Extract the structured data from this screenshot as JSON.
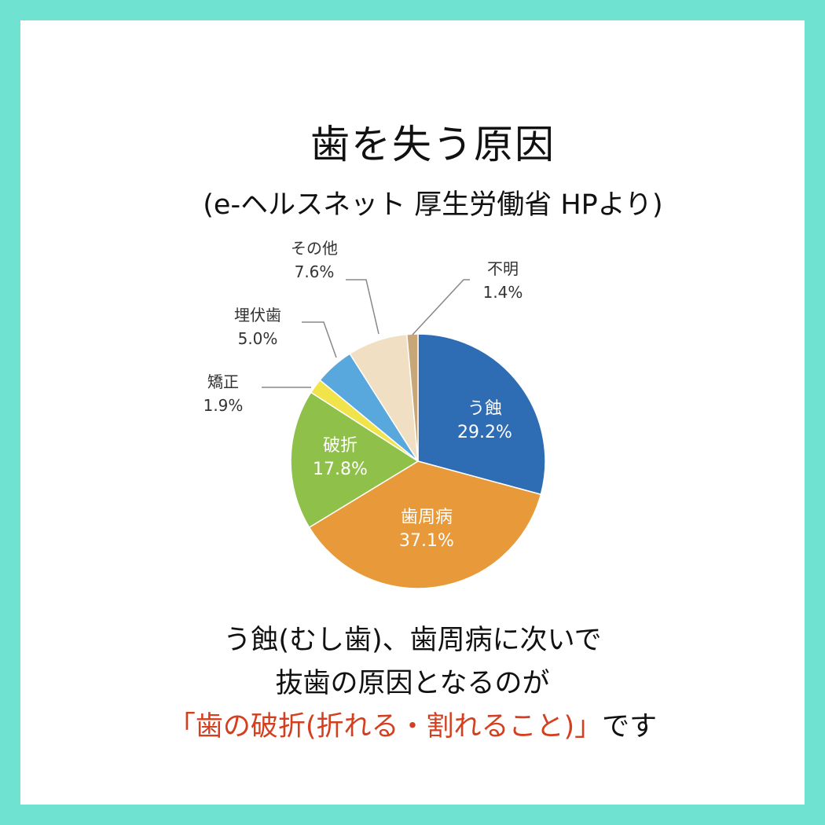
{
  "header": {
    "title": "歯を失う原因",
    "subtitle": "(e-ヘルスネット 厚生労働省 HPより)"
  },
  "chart_data": {
    "type": "pie",
    "start_angle_deg": 0,
    "direction": "clockwise",
    "slices": [
      {
        "label": "う蝕",
        "value": 29.2,
        "value_label": "29.2%",
        "color": "#2e6db4",
        "label_placement": "inside"
      },
      {
        "label": "歯周病",
        "value": 37.1,
        "value_label": "37.1%",
        "color": "#e89a3a",
        "label_placement": "inside"
      },
      {
        "label": "破折",
        "value": 17.8,
        "value_label": "17.8%",
        "color": "#8fc14a",
        "label_placement": "inside"
      },
      {
        "label": "矯正",
        "value": 1.9,
        "value_label": "1.9%",
        "color": "#f1e34a",
        "label_placement": "outside"
      },
      {
        "label": "埋伏歯",
        "value": 5.0,
        "value_label": "5.0%",
        "color": "#58a7dd",
        "label_placement": "outside"
      },
      {
        "label": "その他",
        "value": 7.6,
        "value_label": "7.6%",
        "color": "#f1dfc3",
        "label_placement": "outside"
      },
      {
        "label": "不明",
        "value": 1.4,
        "value_label": "1.4%",
        "color": "#c9a678",
        "label_placement": "outside"
      }
    ]
  },
  "caption": {
    "line1": "う蝕(むし歯)、歯周病に次いで",
    "line2": "抜歯の原因となるのが",
    "line3_highlight": "「歯の破折(折れる・割れること)」",
    "line3_suffix": "です"
  },
  "colors": {
    "border": "#6fe2d1",
    "highlight": "#d43f1f"
  }
}
